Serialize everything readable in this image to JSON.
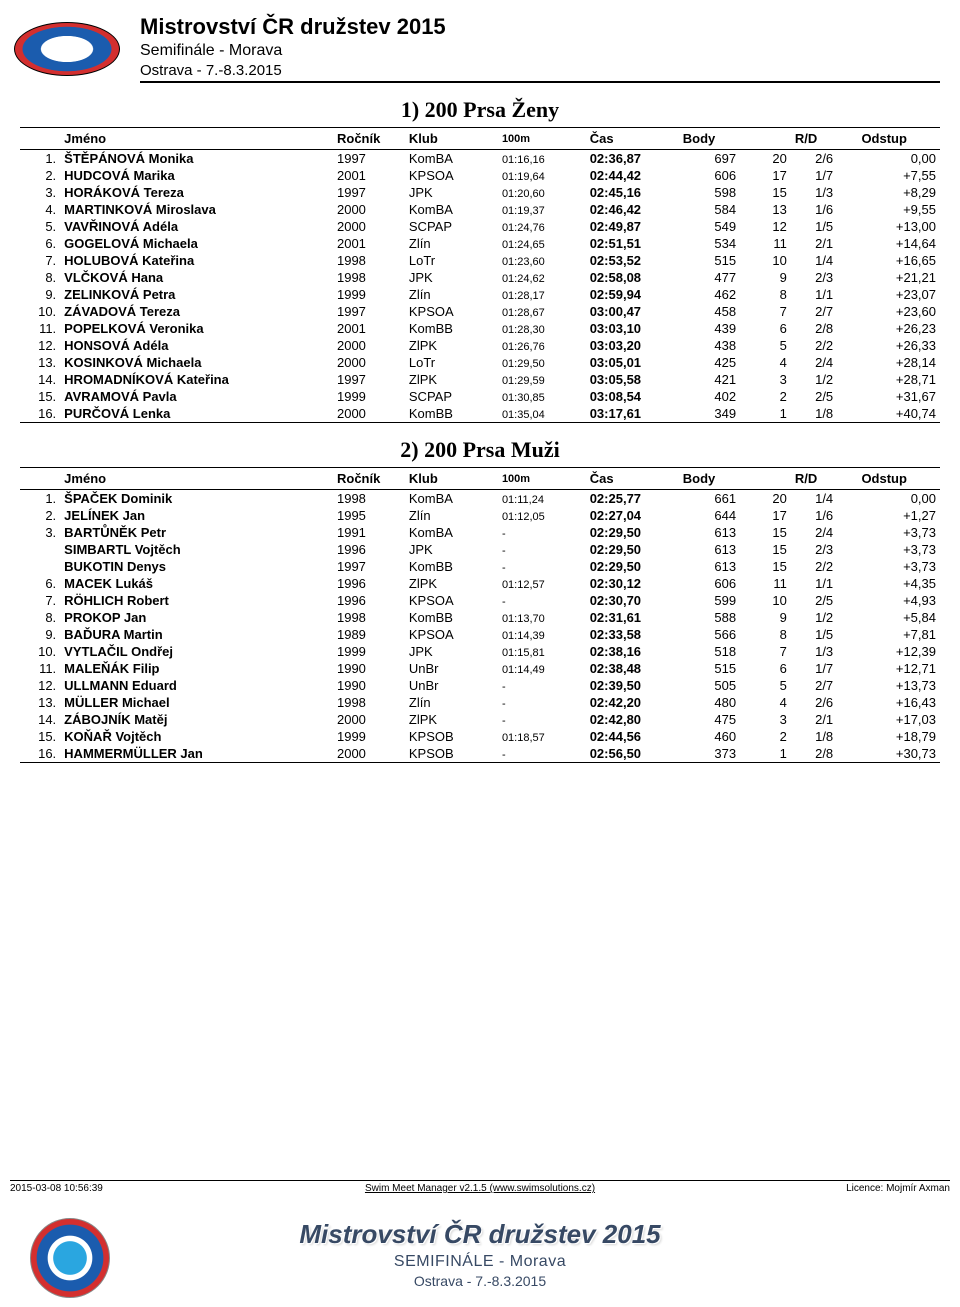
{
  "header": {
    "title": "Mistrovství ČR družstev 2015",
    "subtitle": "Semifinále - Morava",
    "location": "Ostrava - 7.-8.3.2015"
  },
  "events": [
    {
      "title": "1) 200 Prsa Ženy",
      "columns": [
        "",
        "Jméno",
        "Ročník",
        "Klub",
        "100m",
        "Čas",
        "Body",
        "",
        "R/D",
        "Odstup"
      ],
      "rows": [
        [
          "1.",
          "ŠTĚPÁNOVÁ Monika",
          "1997",
          "KomBA",
          "01:16,16",
          "02:36,87",
          "697",
          "20",
          "2/6",
          "0,00"
        ],
        [
          "2.",
          "HUDCOVÁ Marika",
          "2001",
          "KPSOA",
          "01:19,64",
          "02:44,42",
          "606",
          "17",
          "1/7",
          "+7,55"
        ],
        [
          "3.",
          "HORÁKOVÁ Tereza",
          "1997",
          "JPK",
          "01:20,60",
          "02:45,16",
          "598",
          "15",
          "1/3",
          "+8,29"
        ],
        [
          "4.",
          "MARTINKOVÁ Miroslava",
          "2000",
          "KomBA",
          "01:19,37",
          "02:46,42",
          "584",
          "13",
          "1/6",
          "+9,55"
        ],
        [
          "5.",
          "VAVŘINOVÁ Adéla",
          "2000",
          "SCPAP",
          "01:24,76",
          "02:49,87",
          "549",
          "12",
          "1/5",
          "+13,00"
        ],
        [
          "6.",
          "GOGELOVÁ Michaela",
          "2001",
          "Zlín",
          "01:24,65",
          "02:51,51",
          "534",
          "11",
          "2/1",
          "+14,64"
        ],
        [
          "7.",
          "HOLUBOVÁ Kateřina",
          "1998",
          "LoTr",
          "01:23,60",
          "02:53,52",
          "515",
          "10",
          "1/4",
          "+16,65"
        ],
        [
          "8.",
          "VLČKOVÁ Hana",
          "1998",
          "JPK",
          "01:24,62",
          "02:58,08",
          "477",
          "9",
          "2/3",
          "+21,21"
        ],
        [
          "9.",
          "ZELINKOVÁ Petra",
          "1999",
          "Zlín",
          "01:28,17",
          "02:59,94",
          "462",
          "8",
          "1/1",
          "+23,07"
        ],
        [
          "10.",
          "ZÁVADOVÁ Tereza",
          "1997",
          "KPSOA",
          "01:28,67",
          "03:00,47",
          "458",
          "7",
          "2/7",
          "+23,60"
        ],
        [
          "11.",
          "POPELKOVÁ Veronika",
          "2001",
          "KomBB",
          "01:28,30",
          "03:03,10",
          "439",
          "6",
          "2/8",
          "+26,23"
        ],
        [
          "12.",
          "HONSOVÁ Adéla",
          "2000",
          "ZlPK",
          "01:26,76",
          "03:03,20",
          "438",
          "5",
          "2/2",
          "+26,33"
        ],
        [
          "13.",
          "KOSINKOVÁ Michaela",
          "2000",
          "LoTr",
          "01:29,50",
          "03:05,01",
          "425",
          "4",
          "2/4",
          "+28,14"
        ],
        [
          "14.",
          "HROMADNÍKOVÁ Kateřina",
          "1997",
          "ZlPK",
          "01:29,59",
          "03:05,58",
          "421",
          "3",
          "1/2",
          "+28,71"
        ],
        [
          "15.",
          "AVRAMOVÁ Pavla",
          "1999",
          "SCPAP",
          "01:30,85",
          "03:08,54",
          "402",
          "2",
          "2/5",
          "+31,67"
        ],
        [
          "16.",
          "PURČOVÁ Lenka",
          "2000",
          "KomBB",
          "01:35,04",
          "03:17,61",
          "349",
          "1",
          "1/8",
          "+40,74"
        ]
      ]
    },
    {
      "title": "2) 200 Prsa Muži",
      "columns": [
        "",
        "Jméno",
        "Ročník",
        "Klub",
        "100m",
        "Čas",
        "Body",
        "",
        "R/D",
        "Odstup"
      ],
      "rows": [
        [
          "1.",
          "ŠPAČEK Dominik",
          "1998",
          "KomBA",
          "01:11,24",
          "02:25,77",
          "661",
          "20",
          "1/4",
          "0,00"
        ],
        [
          "2.",
          "JELÍNEK Jan",
          "1995",
          "Zlín",
          "01:12,05",
          "02:27,04",
          "644",
          "17",
          "1/6",
          "+1,27"
        ],
        [
          "3.",
          "BARTŮNĚK Petr",
          "1991",
          "KomBA",
          "-",
          "02:29,50",
          "613",
          "15",
          "2/4",
          "+3,73"
        ],
        [
          "",
          "SIMBARTL Vojtěch",
          "1996",
          "JPK",
          "-",
          "02:29,50",
          "613",
          "15",
          "2/3",
          "+3,73"
        ],
        [
          "",
          "BUKOTIN Denys",
          "1997",
          "KomBB",
          "-",
          "02:29,50",
          "613",
          "15",
          "2/2",
          "+3,73"
        ],
        [
          "6.",
          "MACEK Lukáš",
          "1996",
          "ZlPK",
          "01:12,57",
          "02:30,12",
          "606",
          "11",
          "1/1",
          "+4,35"
        ],
        [
          "7.",
          "RÖHLICH Robert",
          "1996",
          "KPSOA",
          "-",
          "02:30,70",
          "599",
          "10",
          "2/5",
          "+4,93"
        ],
        [
          "8.",
          "PROKOP Jan",
          "1998",
          "KomBB",
          "01:13,70",
          "02:31,61",
          "588",
          "9",
          "1/2",
          "+5,84"
        ],
        [
          "9.",
          "BAĎURA Martin",
          "1989",
          "KPSOA",
          "01:14,39",
          "02:33,58",
          "566",
          "8",
          "1/5",
          "+7,81"
        ],
        [
          "10.",
          "VYTLAČIL Ondřej",
          "1999",
          "JPK",
          "01:15,81",
          "02:38,16",
          "518",
          "7",
          "1/3",
          "+12,39"
        ],
        [
          "11.",
          "MALEŇÁK Filip",
          "1990",
          "UnBr",
          "01:14,49",
          "02:38,48",
          "515",
          "6",
          "1/7",
          "+12,71"
        ],
        [
          "12.",
          "ULLMANN Eduard",
          "1990",
          "UnBr",
          "-",
          "02:39,50",
          "505",
          "5",
          "2/7",
          "+13,73"
        ],
        [
          "13.",
          "MÜLLER Michael",
          "1998",
          "Zlín",
          "-",
          "02:42,20",
          "480",
          "4",
          "2/6",
          "+16,43"
        ],
        [
          "14.",
          "ZÁBOJNÍK Matěj",
          "2000",
          "ZlPK",
          "-",
          "02:42,80",
          "475",
          "3",
          "2/1",
          "+17,03"
        ],
        [
          "15.",
          "KOŇAŘ Vojtěch",
          "1999",
          "KPSOB",
          "01:18,57",
          "02:44,56",
          "460",
          "2",
          "1/8",
          "+18,79"
        ],
        [
          "16.",
          "HAMMERMÜLLER Jan",
          "2000",
          "KPSOB",
          "-",
          "02:56,50",
          "373",
          "1",
          "2/8",
          "+30,73"
        ]
      ]
    }
  ],
  "footer": {
    "left": "2015-03-08 10:56:39",
    "center": "Swim Meet Manager v2.1.5 (www.swimsolutions.cz)",
    "right": "Licence: Mojmír Axman"
  },
  "banner": {
    "title": "Mistrovství ČR družstev 2015",
    "sub": "SEMIFINÁLE - Morava",
    "loc": "Ostrava - 7.-8.3.2015"
  }
}
